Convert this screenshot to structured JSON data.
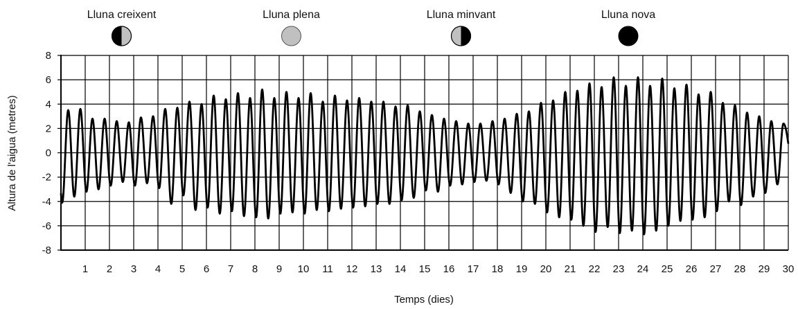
{
  "chart_data": {
    "type": "line",
    "title": "",
    "xlabel": "Temps (dies)",
    "ylabel": "Altura de l'aigua (metres)",
    "xlim": [
      0,
      30
    ],
    "ylim": [
      -8,
      8
    ],
    "x_ticks": [
      1,
      2,
      3,
      4,
      5,
      6,
      7,
      8,
      9,
      10,
      11,
      12,
      13,
      14,
      15,
      16,
      17,
      18,
      19,
      20,
      21,
      22,
      23,
      24,
      25,
      26,
      27,
      28,
      29,
      30
    ],
    "y_ticks": [
      8,
      6,
      4,
      2,
      0,
      -2,
      -4,
      -6,
      -8
    ],
    "grid": true,
    "colors": {
      "line": "#000000",
      "grid": "#000000",
      "full_moon": "#c0c0c0",
      "new_moon": "#000000"
    },
    "moon_phases": [
      {
        "label": "Lluna creixent",
        "day": 2.5,
        "icon": "moon-first-quarter-icon"
      },
      {
        "label": "Lluna plena",
        "day": 9.5,
        "icon": "moon-full-icon"
      },
      {
        "label": "Lluna minvant",
        "day": 16.5,
        "icon": "moon-last-quarter-icon"
      },
      {
        "label": "Lluna nova",
        "day": 23.4,
        "icon": "moon-new-icon"
      }
    ],
    "series": [
      {
        "tides_per_day": 2,
        "x": [
          0.05,
          0.3,
          0.55,
          0.8,
          1.05,
          1.3,
          1.55,
          1.8,
          2.05,
          2.3,
          2.55,
          2.8,
          3.05,
          3.3,
          3.55,
          3.8,
          4.05,
          4.3,
          4.55,
          4.8,
          5.05,
          5.3,
          5.55,
          5.8,
          6.05,
          6.3,
          6.55,
          6.8,
          7.05,
          7.3,
          7.55,
          7.8,
          8.05,
          8.3,
          8.55,
          8.8,
          9.05,
          9.3,
          9.55,
          9.8,
          10.05,
          10.3,
          10.55,
          10.8,
          11.05,
          11.3,
          11.55,
          11.8,
          12.05,
          12.3,
          12.55,
          12.8,
          13.05,
          13.3,
          13.55,
          13.8,
          14.05,
          14.3,
          14.55,
          14.8,
          15.05,
          15.3,
          15.55,
          15.8,
          16.05,
          16.3,
          16.55,
          16.8,
          17.05,
          17.3,
          17.55,
          17.8,
          18.05,
          18.3,
          18.55,
          18.8,
          19.05,
          19.3,
          19.55,
          19.8,
          20.05,
          20.3,
          20.55,
          20.8,
          21.05,
          21.3,
          21.55,
          21.8,
          22.05,
          22.3,
          22.55,
          22.8,
          23.05,
          23.3,
          23.55,
          23.8,
          24.05,
          24.3,
          24.55,
          24.8,
          25.05,
          25.3,
          25.55,
          25.8,
          26.05,
          26.3,
          26.55,
          26.8,
          27.05,
          27.3,
          27.55,
          27.8,
          28.05,
          28.3,
          28.55,
          28.8,
          29.05,
          29.3,
          29.55,
          29.8
        ],
        "values": [
          -4.1,
          3.5,
          -3.6,
          3.6,
          -3.2,
          2.8,
          -3.0,
          2.8,
          -2.7,
          2.6,
          -2.4,
          2.5,
          -2.7,
          2.9,
          -2.5,
          3.0,
          -2.9,
          3.6,
          -4.2,
          3.7,
          -3.5,
          4.2,
          -4.7,
          4.0,
          -4.5,
          4.7,
          -5.0,
          4.4,
          -4.8,
          4.9,
          -5.2,
          4.5,
          -5.3,
          5.2,
          -5.4,
          4.5,
          -5.0,
          5.0,
          -4.9,
          4.5,
          -5.0,
          4.9,
          -4.7,
          4.2,
          -4.8,
          4.7,
          -4.6,
          4.3,
          -4.5,
          4.5,
          -4.4,
          4.2,
          -4.2,
          4.2,
          -4.2,
          3.8,
          -3.9,
          3.9,
          -3.7,
          3.4,
          -3.1,
          3.1,
          -3.2,
          2.8,
          -2.7,
          2.6,
          -2.6,
          2.4,
          -2.4,
          2.4,
          -2.3,
          2.6,
          -2.6,
          2.8,
          -3.3,
          3.2,
          -4.0,
          3.4,
          -4.2,
          4.1,
          -4.9,
          4.3,
          -5.3,
          5.0,
          -5.5,
          5.1,
          -6.0,
          5.7,
          -6.5,
          5.4,
          -6.1,
          6.2,
          -6.6,
          5.5,
          -6.4,
          6.2,
          -6.7,
          5.5,
          -6.4,
          6.1,
          -6.0,
          5.3,
          -5.6,
          5.6,
          -5.5,
          4.8,
          -5.3,
          5.0,
          -4.8,
          4.1,
          -4.0,
          3.9,
          -4.3,
          3.3,
          -3.6,
          3.0,
          -3.3,
          2.6,
          -2.6,
          2.4
        ]
      }
    ]
  }
}
